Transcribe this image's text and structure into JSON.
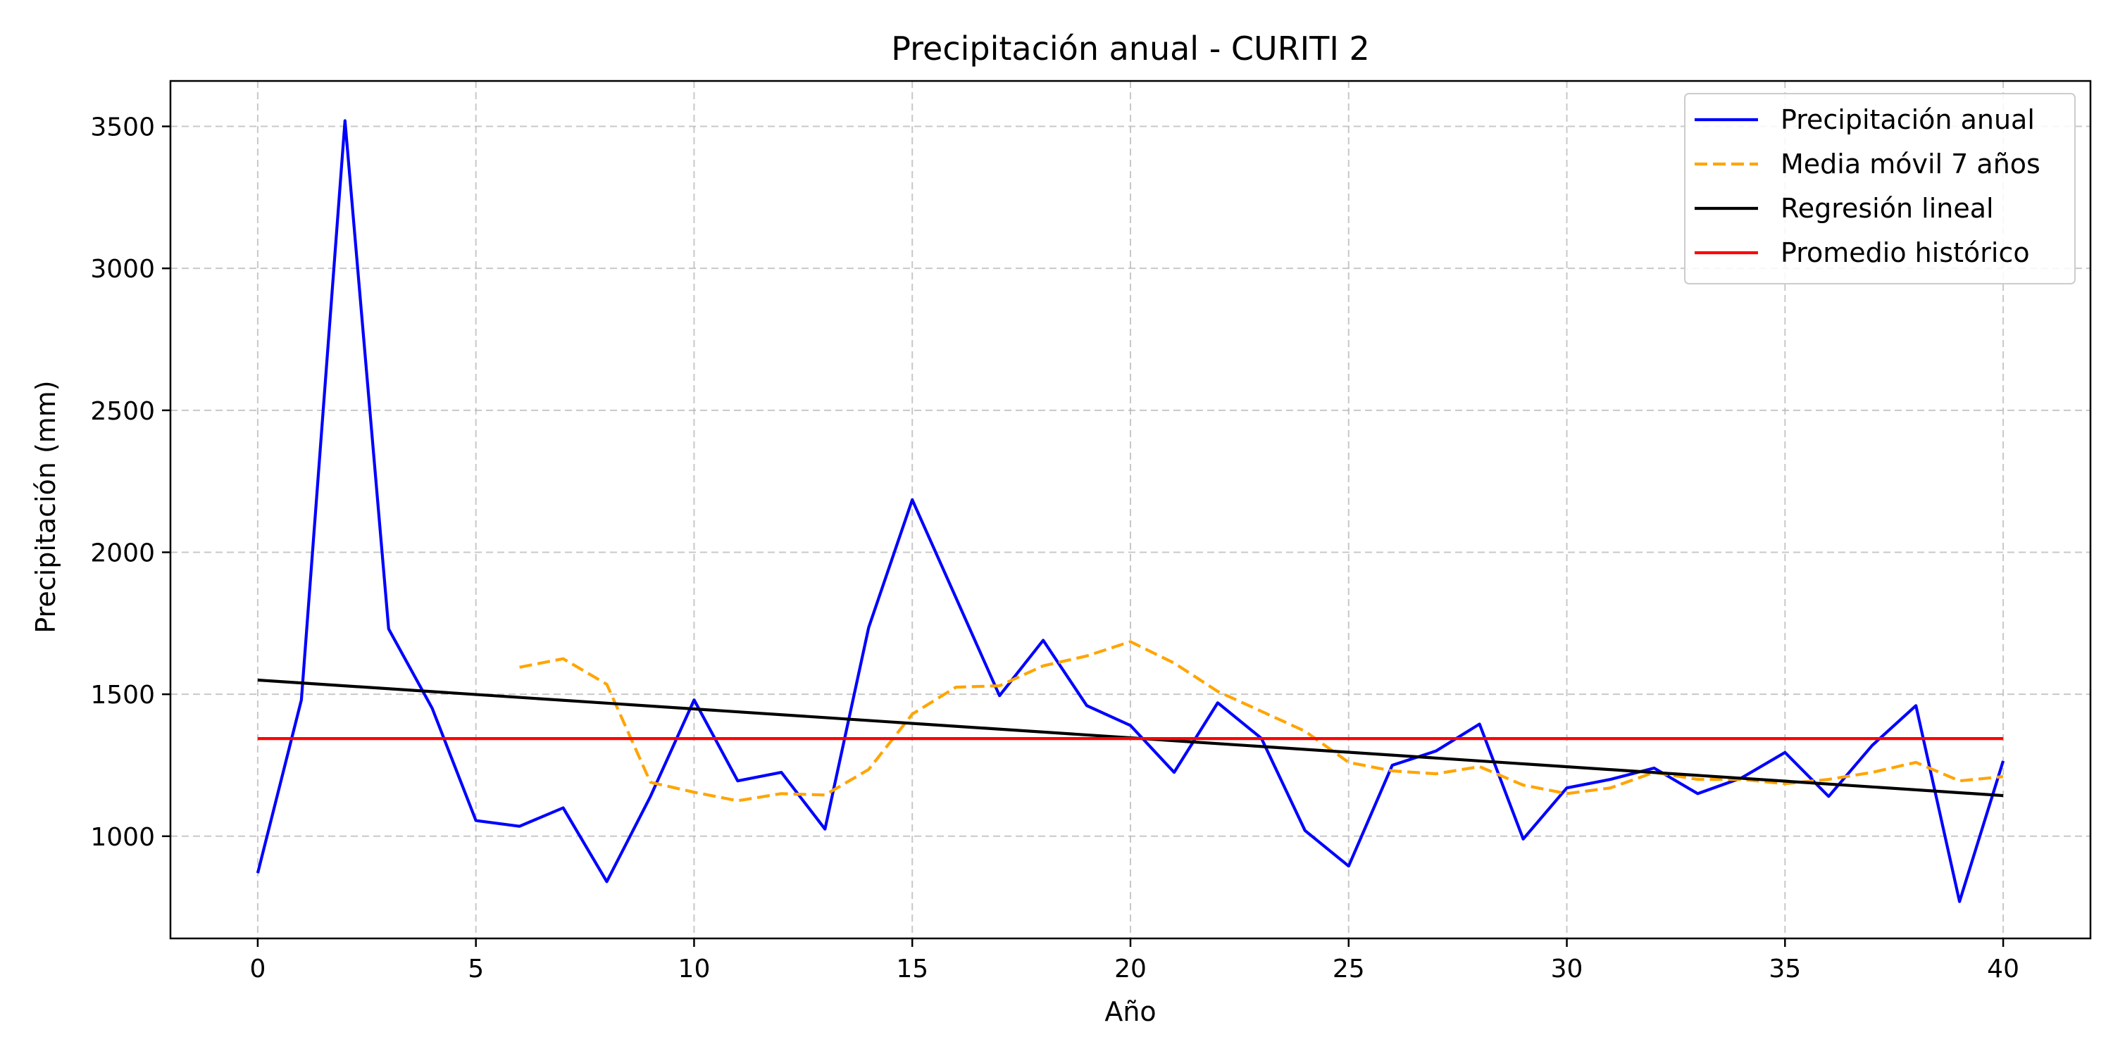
{
  "chart_data": {
    "type": "line",
    "title": "Precipitación anual - CURITI 2",
    "xlabel": "Año",
    "ylabel": "Precipitación (mm)",
    "xlim": [
      -2,
      42
    ],
    "ylim": [
      640,
      3660
    ],
    "xticks": [
      0,
      5,
      10,
      15,
      20,
      25,
      30,
      35,
      40
    ],
    "yticks": [
      1000,
      1500,
      2000,
      2500,
      3000,
      3500
    ],
    "grid": true,
    "legend_position": "top-right",
    "series": [
      {
        "name": "Precipitación anual",
        "color": "#0000ff",
        "style": "solid",
        "x": [
          0,
          1,
          2,
          3,
          4,
          5,
          6,
          7,
          8,
          9,
          10,
          11,
          12,
          13,
          14,
          15,
          16,
          17,
          18,
          19,
          20,
          21,
          22,
          23,
          24,
          25,
          26,
          27,
          28,
          29,
          30,
          31,
          32,
          33,
          34,
          35,
          36,
          37,
          38,
          39,
          40
        ],
        "y": [
          870,
          1480,
          3520,
          1730,
          1450,
          1055,
          1035,
          1100,
          840,
          1140,
          1480,
          1195,
          1225,
          1025,
          1735,
          2185,
          1840,
          1495,
          1690,
          1460,
          1390,
          1225,
          1470,
          1345,
          1020,
          895,
          1250,
          1300,
          1395,
          990,
          1170,
          1200,
          1240,
          1150,
          1205,
          1295,
          1140,
          1320,
          1460,
          770,
          1265
        ]
      },
      {
        "name": "Media móvil 7 años",
        "color": "#ffa500",
        "style": "dashed",
        "x": [
          6,
          7,
          8,
          9,
          10,
          11,
          12,
          13,
          14,
          15,
          16,
          17,
          18,
          19,
          20,
          21,
          22,
          23,
          24,
          25,
          26,
          27,
          28,
          29,
          30,
          31,
          32,
          33,
          34,
          35,
          36,
          37,
          38,
          39,
          40
        ],
        "y": [
          1595,
          1625,
          1535,
          1190,
          1155,
          1125,
          1150,
          1145,
          1235,
          1430,
          1525,
          1530,
          1600,
          1635,
          1685,
          1610,
          1510,
          1440,
          1370,
          1260,
          1230,
          1220,
          1245,
          1180,
          1150,
          1170,
          1225,
          1200,
          1200,
          1185,
          1200,
          1225,
          1260,
          1195,
          1210
        ]
      },
      {
        "name": "Regresión lineal",
        "color": "#000000",
        "style": "solid",
        "x": [
          0,
          40
        ],
        "y": [
          1550,
          1143
        ]
      },
      {
        "name": "Promedio histórico",
        "color": "#ff0000",
        "style": "solid",
        "x": [
          0,
          40
        ],
        "y": [
          1344,
          1344
        ]
      }
    ]
  }
}
